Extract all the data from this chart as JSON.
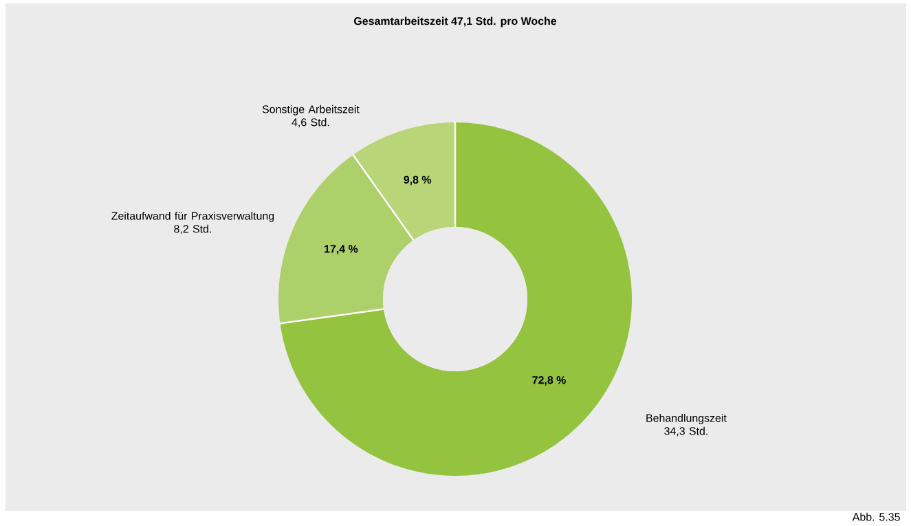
{
  "chart_data": {
    "type": "donut",
    "title": "Gesamtarbeitszeit 47,1 Std. pro Woche",
    "categories": [
      "Behandlungszeit",
      "Zeitaufwand für Praxisverwaltung",
      "Sonstige Arbeitszeit"
    ],
    "values": [
      72.8,
      17.4,
      9.8
    ],
    "colors": [
      "#93c33f",
      "#add06a",
      "#b8d677"
    ],
    "value_labels": [
      "72,8 %",
      "17,4 %",
      "9,8 %"
    ],
    "annotations": [
      "34,3 Std.",
      "8,2 Std.",
      "4,6 Std.",
      "Abb. 5.35"
    ]
  }
}
